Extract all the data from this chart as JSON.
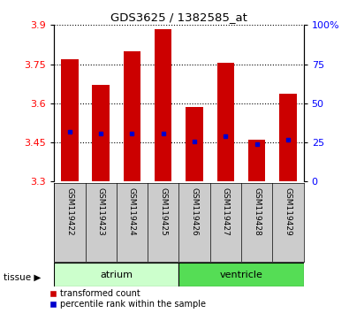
{
  "title": "GDS3625 / 1382585_at",
  "samples": [
    "GSM119422",
    "GSM119423",
    "GSM119424",
    "GSM119425",
    "GSM119426",
    "GSM119427",
    "GSM119428",
    "GSM119429"
  ],
  "bar_tops": [
    3.77,
    3.67,
    3.8,
    3.885,
    3.585,
    3.755,
    3.46,
    3.635
  ],
  "bar_bottoms": [
    3.3,
    3.3,
    3.3,
    3.3,
    3.3,
    3.3,
    3.3,
    3.3
  ],
  "percentile_values": [
    3.49,
    3.485,
    3.485,
    3.485,
    3.455,
    3.475,
    3.445,
    3.46
  ],
  "ylim_left": [
    3.3,
    3.9
  ],
  "ylim_right": [
    0,
    100
  ],
  "yticks_left": [
    3.3,
    3.45,
    3.6,
    3.75,
    3.9
  ],
  "yticks_right": [
    0,
    25,
    50,
    75,
    100
  ],
  "bar_color": "#cc0000",
  "percentile_color": "#0000cc",
  "tissue_groups": [
    {
      "label": "atrium",
      "start": 0,
      "end": 4,
      "color": "#ccffcc"
    },
    {
      "label": "ventricle",
      "start": 4,
      "end": 8,
      "color": "#55dd55"
    }
  ],
  "legend_items": [
    {
      "label": "transformed count",
      "color": "#cc0000"
    },
    {
      "label": "percentile rank within the sample",
      "color": "#0000cc"
    }
  ],
  "tissue_label": "tissue",
  "label_area_color": "#cccccc",
  "bar_width": 0.55
}
